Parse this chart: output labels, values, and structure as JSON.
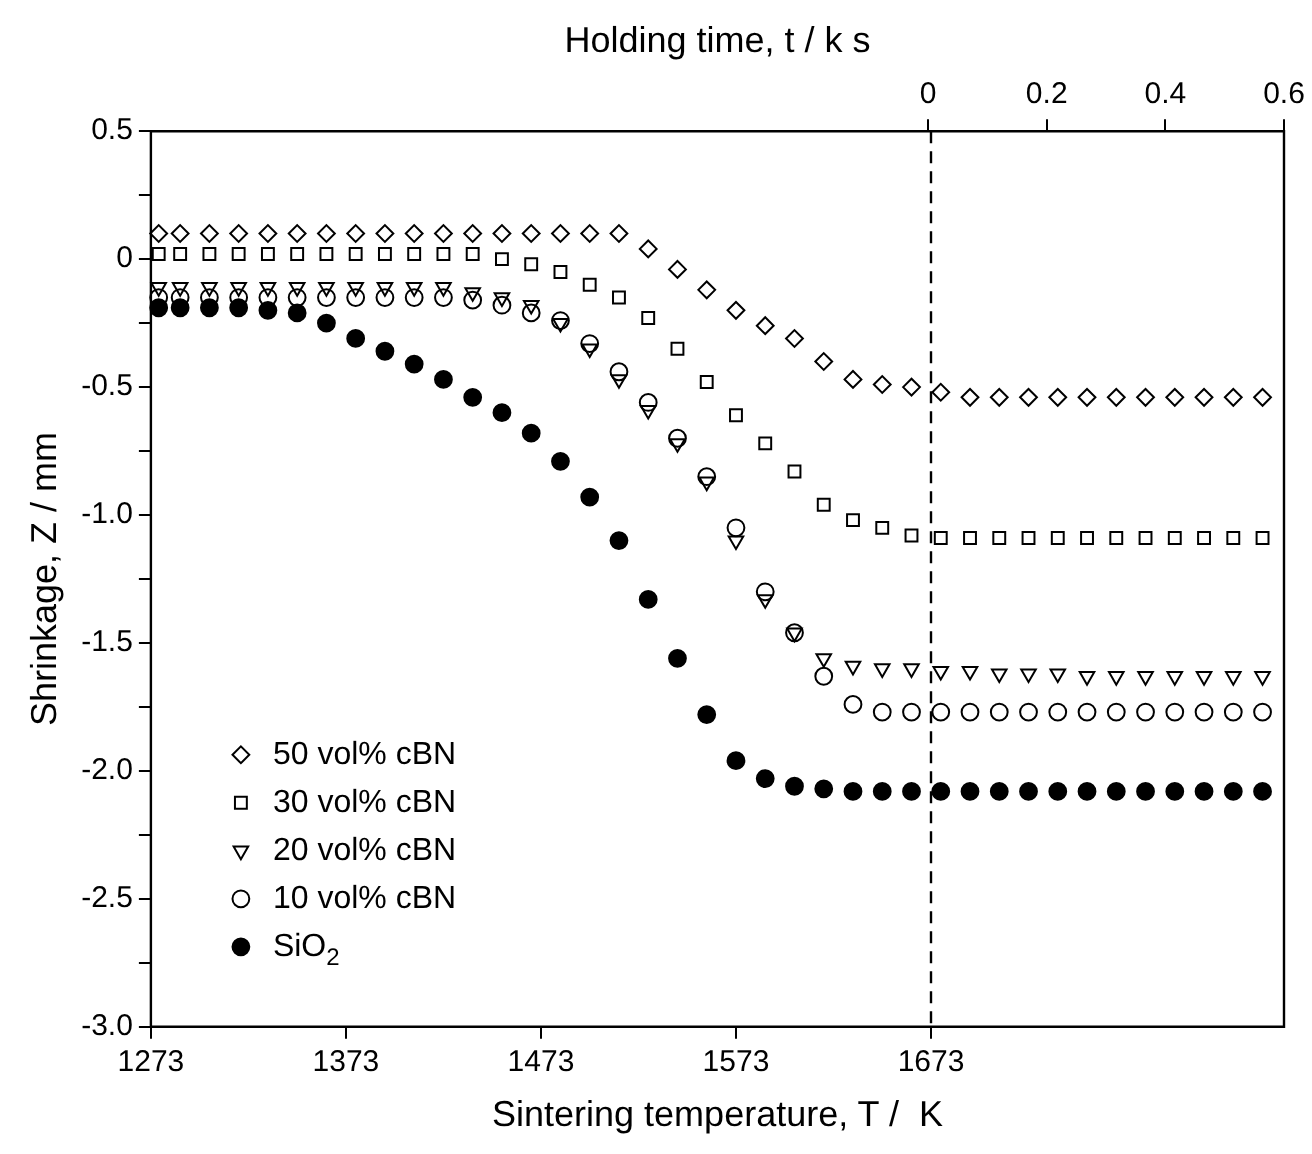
{
  "chart_data": {
    "type": "scatter",
    "xlabel": "Sintering temperature, T /  K",
    "x2label": "Holding time, t / k s",
    "ylabel": "Shrinkage, Z / mm",
    "x": [
      1277,
      1288,
      1303,
      1318,
      1333,
      1348,
      1363,
      1378,
      1393,
      1408,
      1423,
      1438,
      1453,
      1468,
      1483,
      1498,
      1513,
      1528,
      1543,
      1558,
      1573,
      1588,
      1603,
      1618,
      1633,
      1648,
      1663,
      1678,
      1693,
      1708,
      1723,
      1738,
      1753,
      1768,
      1783,
      1798,
      1813,
      1828,
      1843
    ],
    "xlim": [
      1273,
      1854
    ],
    "xticks": [
      1273,
      1373,
      1473,
      1573,
      1673
    ],
    "x2lim": [
      -1.31,
      0.6
    ],
    "x2ticks": [
      0,
      0.2,
      0.4,
      0.6
    ],
    "ylim": [
      -3,
      0.5
    ],
    "yticks": [
      0.5,
      {
        "value": 0.25,
        "label": null
      },
      0,
      {
        "value": -0.25,
        "label": null
      },
      {
        "value": -0.5,
        "label": "-0.5"
      },
      {
        "value": -0.75,
        "label": null
      },
      {
        "value": -1,
        "label": "-1.0"
      },
      {
        "value": -1.25,
        "label": null
      },
      {
        "value": -1.5,
        "label": "-1.5"
      },
      {
        "value": -1.75,
        "label": null
      },
      {
        "value": -2,
        "label": "-2.0"
      },
      {
        "value": -2.25,
        "label": null
      },
      {
        "value": -2.5,
        "label": "-2.5"
      },
      {
        "value": -2.75,
        "label": null
      },
      {
        "value": -3,
        "label": "-3.0"
      }
    ],
    "grid": false,
    "legend": "bottom left",
    "ref_lines": [
      {
        "axis": "x",
        "value": 1673,
        "line_style": "dashed",
        "color": "#000000"
      }
    ],
    "series": [
      {
        "name": "50 vol% cBN",
        "color": "#000000",
        "marker": "diamond",
        "values": [
          0.1,
          0.1,
          0.1,
          0.1,
          0.1,
          0.1,
          0.1,
          0.1,
          0.1,
          0.1,
          0.1,
          0.1,
          0.1,
          0.1,
          0.1,
          0.1,
          0.1,
          0.04,
          -0.04,
          -0.12,
          -0.2,
          -0.26,
          -0.31,
          -0.4,
          -0.47,
          -0.49,
          -0.5,
          -0.52,
          -0.54,
          -0.54,
          -0.54,
          -0.54,
          -0.54,
          -0.54,
          -0.54,
          -0.54,
          -0.54,
          -0.54,
          -0.54
        ]
      },
      {
        "name": "30 vol% cBN",
        "color": "#000000",
        "marker": "square",
        "values": [
          0.02,
          0.02,
          0.02,
          0.02,
          0.02,
          0.02,
          0.02,
          0.02,
          0.02,
          0.02,
          0.02,
          0.02,
          0,
          -0.02,
          -0.05,
          -0.1,
          -0.15,
          -0.23,
          -0.35,
          -0.48,
          -0.61,
          -0.72,
          -0.83,
          -0.96,
          -1.02,
          -1.05,
          -1.08,
          -1.09,
          -1.09,
          -1.09,
          -1.09,
          -1.09,
          -1.09,
          -1.09,
          -1.09,
          -1.09,
          -1.09,
          -1.09,
          -1.09
        ]
      },
      {
        "name": "20 vol% cBN",
        "color": "#000000",
        "marker": "triangle",
        "values": [
          -0.11,
          -0.11,
          -0.11,
          -0.11,
          -0.11,
          -0.11,
          -0.11,
          -0.11,
          -0.11,
          -0.11,
          -0.11,
          -0.13,
          -0.15,
          -0.18,
          -0.25,
          -0.35,
          -0.47,
          -0.59,
          -0.72,
          -0.87,
          -1.1,
          -1.33,
          -1.46,
          -1.56,
          -1.59,
          -1.6,
          -1.6,
          -1.61,
          -1.61,
          -1.62,
          -1.62,
          -1.62,
          -1.63,
          -1.63,
          -1.63,
          -1.63,
          -1.63,
          -1.63,
          -1.63
        ]
      },
      {
        "name": "10 vol% cBN",
        "color": "#000000",
        "marker": "circle",
        "values": [
          -0.15,
          -0.15,
          -0.15,
          -0.15,
          -0.15,
          -0.15,
          -0.15,
          -0.15,
          -0.15,
          -0.15,
          -0.15,
          -0.16,
          -0.18,
          -0.21,
          -0.24,
          -0.33,
          -0.44,
          -0.56,
          -0.7,
          -0.85,
          -1.05,
          -1.3,
          -1.46,
          -1.63,
          -1.74,
          -1.77,
          -1.77,
          -1.77,
          -1.77,
          -1.77,
          -1.77,
          -1.77,
          -1.77,
          -1.77,
          -1.77,
          -1.77,
          -1.77,
          -1.77,
          -1.77
        ]
      },
      {
        "name": "SiO$_{2}$",
        "color": "#000000",
        "marker": "circle",
        "values": [
          -0.19,
          -0.19,
          -0.19,
          -0.19,
          -0.2,
          -0.21,
          -0.25,
          -0.31,
          -0.36,
          -0.41,
          -0.47,
          -0.54,
          -0.6,
          -0.68,
          -0.79,
          -0.93,
          -1.1,
          -1.33,
          -1.56,
          -1.78,
          -1.96,
          -2.03,
          -2.06,
          -2.07,
          -2.08,
          -2.08,
          -2.08,
          -2.08,
          -2.08,
          -2.08,
          -2.08,
          -2.08,
          -2.08,
          -2.08,
          -2.08,
          -2.08,
          -2.08,
          -2.08,
          -2.08
        ]
      }
    ]
  }
}
